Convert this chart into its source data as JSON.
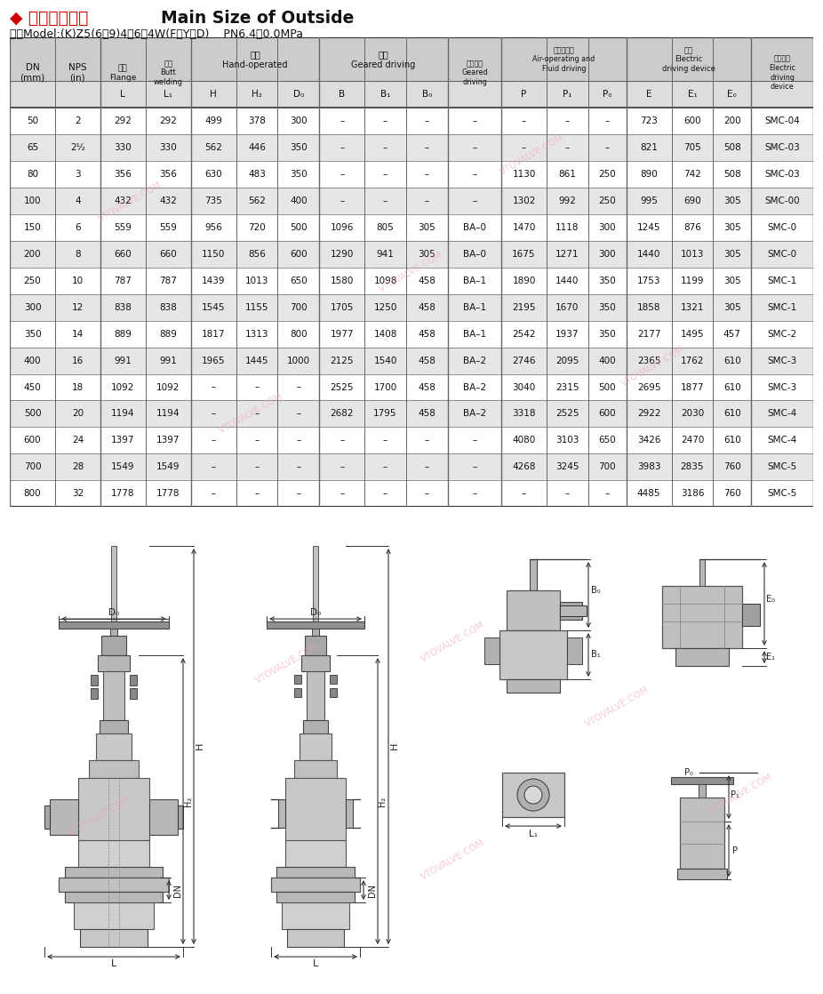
{
  "title_zh": "◆ 主要外形尺寸",
  "title_en": "Main Size of Outside",
  "subtitle": "型号Model:(K)Z5(6、9)4（6）4W(F、Y、D)    PN6.4、0.0MPa",
  "rows": [
    [
      "50",
      "2",
      "292",
      "292",
      "499",
      "378",
      "300",
      "–",
      "–",
      "–",
      "–",
      "–",
      "–",
      "–",
      "723",
      "600",
      "200",
      "SMC-04"
    ],
    [
      "65",
      "2¹⁄₂",
      "330",
      "330",
      "562",
      "446",
      "350",
      "–",
      "–",
      "–",
      "–",
      "–",
      "–",
      "–",
      "821",
      "705",
      "508",
      "SMC-03"
    ],
    [
      "80",
      "3",
      "356",
      "356",
      "630",
      "483",
      "350",
      "–",
      "–",
      "–",
      "–",
      "1130",
      "861",
      "250",
      "890",
      "742",
      "508",
      "SMC-03"
    ],
    [
      "100",
      "4",
      "432",
      "432",
      "735",
      "562",
      "400",
      "–",
      "–",
      "–",
      "–",
      "1302",
      "992",
      "250",
      "995",
      "690",
      "305",
      "SMC-00"
    ],
    [
      "150",
      "6",
      "559",
      "559",
      "956",
      "720",
      "500",
      "1096",
      "805",
      "305",
      "BA–0",
      "1470",
      "1118",
      "300",
      "1245",
      "876",
      "305",
      "SMC-0"
    ],
    [
      "200",
      "8",
      "660",
      "660",
      "1150",
      "856",
      "600",
      "1290",
      "941",
      "305",
      "BA–0",
      "1675",
      "1271",
      "300",
      "1440",
      "1013",
      "305",
      "SMC-0"
    ],
    [
      "250",
      "10",
      "787",
      "787",
      "1439",
      "1013",
      "650",
      "1580",
      "1098",
      "458",
      "BA–1",
      "1890",
      "1440",
      "350",
      "1753",
      "1199",
      "305",
      "SMC-1"
    ],
    [
      "300",
      "12",
      "838",
      "838",
      "1545",
      "1155",
      "700",
      "1705",
      "1250",
      "458",
      "BA–1",
      "2195",
      "1670",
      "350",
      "1858",
      "1321",
      "305",
      "SMC-1"
    ],
    [
      "350",
      "14",
      "889",
      "889",
      "1817",
      "1313",
      "800",
      "1977",
      "1408",
      "458",
      "BA–1",
      "2542",
      "1937",
      "350",
      "2177",
      "1495",
      "457",
      "SMC-2"
    ],
    [
      "400",
      "16",
      "991",
      "991",
      "1965",
      "1445",
      "1000",
      "2125",
      "1540",
      "458",
      "BA–2",
      "2746",
      "2095",
      "400",
      "2365",
      "1762",
      "610",
      "SMC-3"
    ],
    [
      "450",
      "18",
      "1092",
      "1092",
      "–",
      "–",
      "–",
      "2525",
      "1700",
      "458",
      "BA–2",
      "3040",
      "2315",
      "500",
      "2695",
      "1877",
      "610",
      "SMC-3"
    ],
    [
      "500",
      "20",
      "1194",
      "1194",
      "–",
      "–",
      "–",
      "2682",
      "1795",
      "458",
      "BA–2",
      "3318",
      "2525",
      "600",
      "2922",
      "2030",
      "610",
      "SMC-4"
    ],
    [
      "600",
      "24",
      "1397",
      "1397",
      "–",
      "–",
      "–",
      "–",
      "–",
      "–",
      "–",
      "4080",
      "3103",
      "650",
      "3426",
      "2470",
      "610",
      "SMC-4"
    ],
    [
      "700",
      "28",
      "1549",
      "1549",
      "–",
      "–",
      "–",
      "–",
      "–",
      "–",
      "–",
      "4268",
      "3245",
      "700",
      "3983",
      "2835",
      "760",
      "SMC-5"
    ],
    [
      "800",
      "32",
      "1778",
      "1778",
      "–",
      "–",
      "–",
      "–",
      "–",
      "–",
      "–",
      "–",
      "–",
      "–",
      "4485",
      "3186",
      "760",
      "SMC-5"
    ]
  ],
  "shaded_rows": [
    1,
    3,
    5,
    7,
    9,
    11,
    13
  ],
  "shaded_color": "#e6e6e6",
  "white_color": "#ffffff",
  "header_bg": "#cccccc",
  "subheader_bg": "#dddddd",
  "border_color": "#666666",
  "thick_border": "#333333",
  "text_color": "#111111",
  "red_color": "#cc0000",
  "watermark_color": "#f0a0b8",
  "diagram_line_color": "#444444",
  "diagram_bg": "#ffffff"
}
